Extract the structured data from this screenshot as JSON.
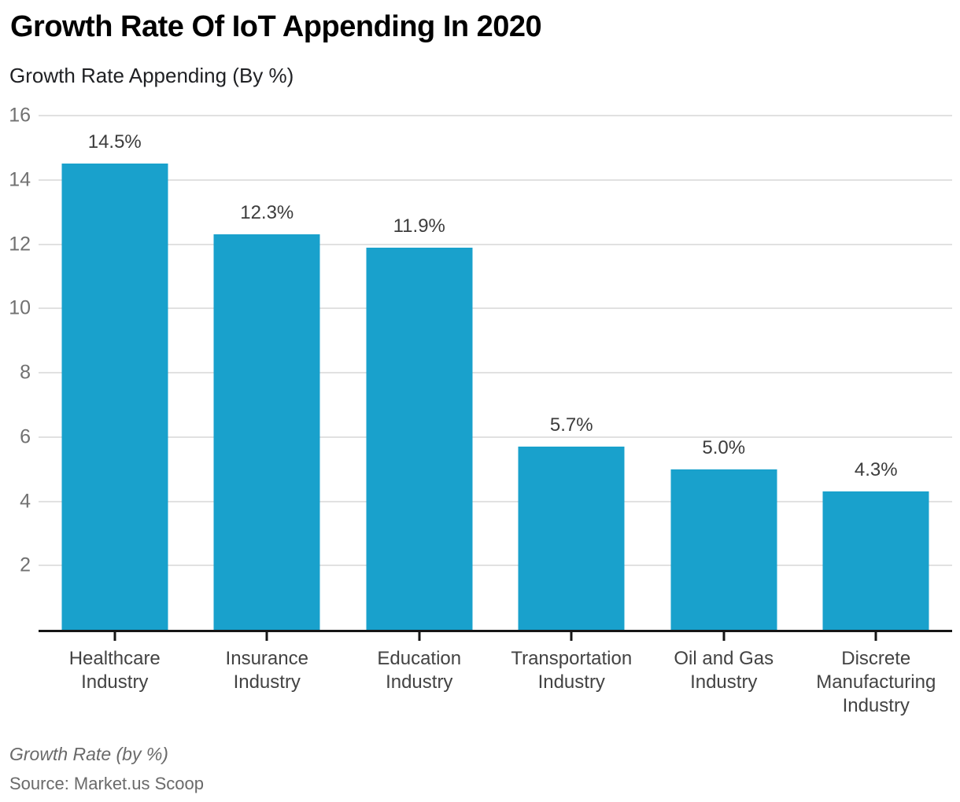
{
  "header": {
    "title": "Growth Rate Of IoT Appending In 2020",
    "subtitle": "Growth Rate Appending (By %)"
  },
  "chart_data": {
    "type": "bar",
    "title": "Growth Rate Of IoT Appending In 2020",
    "subtitle": "Growth Rate Appending (By %)",
    "categories": [
      "Healthcare Industry",
      "Insurance Industry",
      "Education Industry",
      "Transportation Industry",
      "Oil and Gas Industry",
      "Discrete Manufacturing Industry"
    ],
    "values": [
      14.5,
      12.3,
      11.9,
      5.7,
      5.0,
      4.3
    ],
    "value_labels": [
      "14.5%",
      "12.3%",
      "11.9%",
      "5.7%",
      "5.0%",
      "4.3%"
    ],
    "xlabel": "",
    "ylabel": "Growth Rate Appending (By %)",
    "ylim": [
      0,
      16
    ],
    "yticks": [
      2,
      4,
      6,
      8,
      10,
      12,
      14,
      16
    ],
    "grid": "horizontal",
    "legend": "none",
    "bar_color": "#19A1CC"
  },
  "footer": {
    "note": "Growth Rate (by %)",
    "source": "Source: Market.us Scoop"
  },
  "colors": {
    "bar": "#19A1CC",
    "gridline": "#e1e1e1",
    "axis": "#161616",
    "y_tick_label": "#717171",
    "value_label": "#3c3c3c",
    "category_label": "#434343",
    "title": "#000000",
    "footer_text": "#6a6a6a",
    "background": "#ffffff"
  }
}
